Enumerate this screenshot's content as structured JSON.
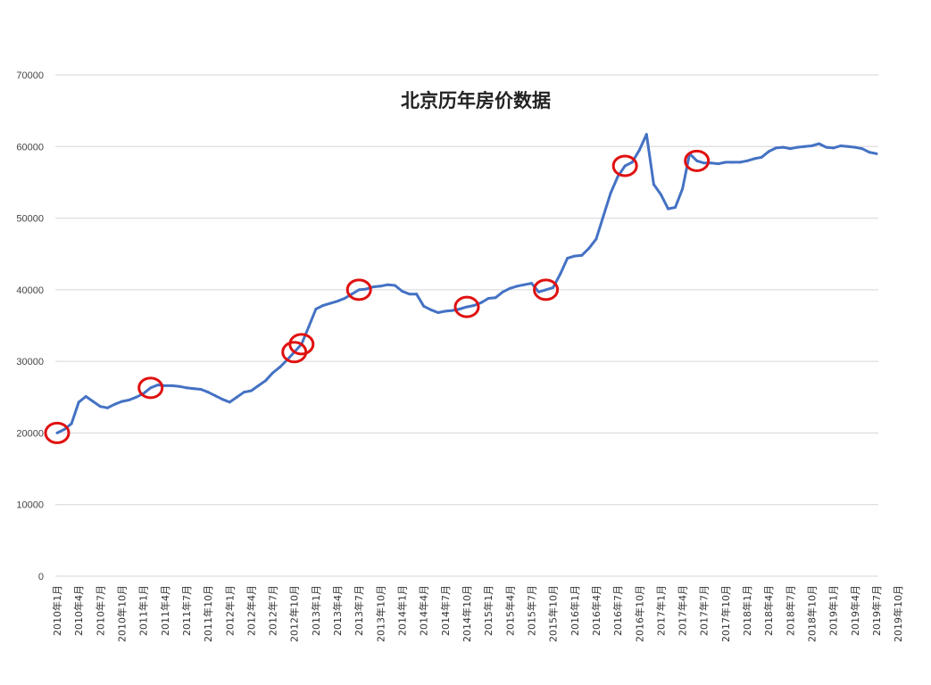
{
  "chart_data": {
    "type": "line",
    "title": "北京历年房价数据",
    "xlabel": "",
    "ylabel": "",
    "ylim": [
      0,
      70000
    ],
    "yticks": [
      0,
      10000,
      20000,
      30000,
      40000,
      50000,
      60000,
      70000
    ],
    "grid": true,
    "legend": "none",
    "line_color": "#4472c4",
    "marker_color": "#e01010",
    "xtick_labels": [
      "2010年1月",
      "2010年4月",
      "2010年7月",
      "2010年10月",
      "2011年1月",
      "2011年4月",
      "2011年7月",
      "2011年10月",
      "2012年1月",
      "2012年4月",
      "2012年7月",
      "2012年10月",
      "2013年1月",
      "2013年4月",
      "2013年7月",
      "2013年10月",
      "2014年1月",
      "2014年4月",
      "2014年7月",
      "2014年10月",
      "2015年1月",
      "2015年4月",
      "2015年7月",
      "2015年10月",
      "2016年1月",
      "2016年4月",
      "2016年7月",
      "2016年10月",
      "2017年1月",
      "2017年4月",
      "2017年7月",
      "2017年10月",
      "2018年1月",
      "2018年4月",
      "2018年7月",
      "2018年10月",
      "2019年1月",
      "2019年4月",
      "2019年7月",
      "2019年10月"
    ],
    "series": [
      {
        "values": [
          20000,
          20500,
          21300,
          24300,
          25100,
          24400,
          23700,
          23500,
          24000,
          24400,
          24600,
          25000,
          25500,
          26300,
          26700,
          26600,
          26600,
          26500,
          26300,
          26200,
          26100,
          25700,
          25200,
          24700,
          24300,
          25000,
          25700,
          25900,
          26600,
          27300,
          28400,
          29200,
          30200,
          31300,
          32400,
          34800,
          37300,
          37800,
          38100,
          38400,
          38800,
          39400,
          40000,
          40100,
          40400,
          40500,
          40700,
          40600,
          39800,
          39400,
          39400,
          37700,
          37200,
          36800,
          37000,
          37100,
          37300,
          37600,
          37800,
          38200,
          38800,
          38900,
          39700,
          40200,
          40500,
          40700,
          40900,
          39700,
          40000,
          40300,
          42200,
          44400,
          44700,
          44800,
          45800,
          47100,
          50300,
          53500,
          55800,
          57300,
          57800,
          59500,
          61700,
          54700,
          53300,
          51300,
          51500,
          54100,
          59000,
          58000,
          57700,
          57700,
          57600,
          57800,
          57800,
          57800,
          58000,
          58300,
          58500,
          59300,
          59800,
          59900,
          59700,
          59900,
          60000,
          60100,
          60400,
          59900,
          59800,
          60100,
          60000,
          59900,
          59700,
          59200,
          59000
        ]
      }
    ],
    "highlighted_points_index": [
      0,
      13,
      34,
      33,
      42,
      57,
      68,
      79,
      89
    ]
  }
}
